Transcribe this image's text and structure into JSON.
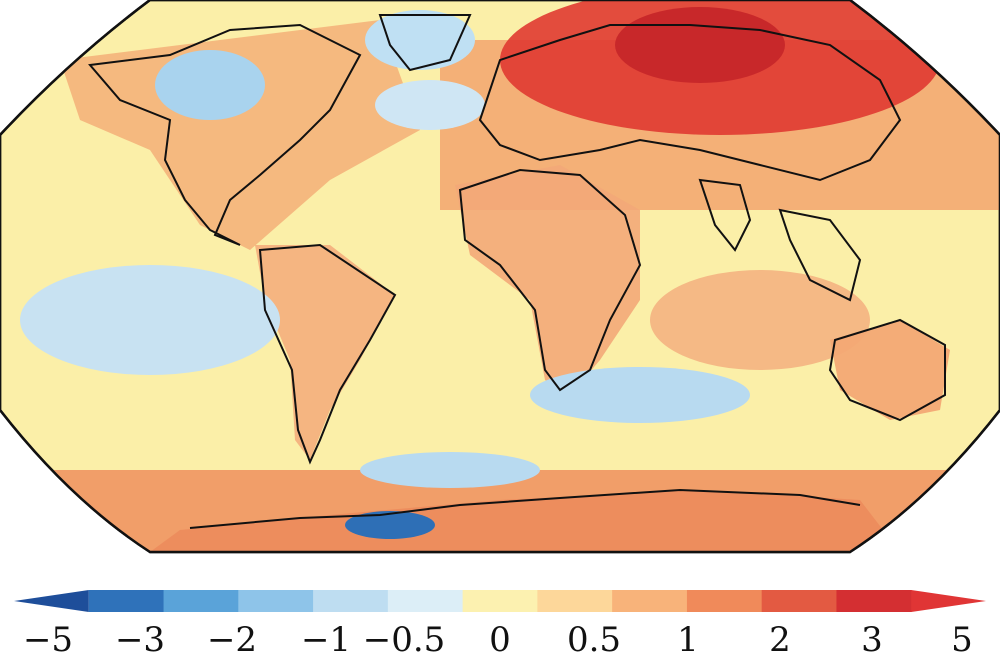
{
  "map": {
    "projection": "Robinson (world, Pacific-cropped)",
    "background_color": "#FBEFA8",
    "coastline_color": "#111111",
    "regions": [
      {
        "name": "arctic-siberia-warm-anomaly",
        "color": "#E03A31"
      },
      {
        "name": "siberia-core-anomaly",
        "color": "#C8282A"
      },
      {
        "name": "eurasia-warm-band",
        "color": "#F2A06A"
      },
      {
        "name": "north-america-warm",
        "color": "#F4B27A"
      },
      {
        "name": "hudson-bay-cool",
        "color": "#A9D3EE"
      },
      {
        "name": "greenland-cool",
        "color": "#BFE0F3"
      },
      {
        "name": "north-atlantic-cool",
        "color": "#CFE6F4"
      },
      {
        "name": "africa-warm",
        "color": "#F3A878"
      },
      {
        "name": "south-america-warm",
        "color": "#F4AE7C"
      },
      {
        "name": "east-pacific-cool",
        "color": "#C8E2F2"
      },
      {
        "name": "south-atlantic-cool",
        "color": "#B8DAF0"
      },
      {
        "name": "indian-ocean-warm",
        "color": "#F5B985"
      },
      {
        "name": "australia-warm",
        "color": "#F3A874"
      },
      {
        "name": "southern-ocean-warm-band",
        "color": "#EE8F5E"
      },
      {
        "name": "antarctic-peninsula-cold",
        "color": "#2E6FB6"
      },
      {
        "name": "antarctica-warm",
        "color": "#EC8A5C"
      }
    ]
  },
  "colorbar": {
    "colors": [
      "#1E4E9A",
      "#2F72BA",
      "#5AA3D9",
      "#8EC4E9",
      "#BEDDF1",
      "#DCEEF7",
      "#FCF1B0",
      "#FDD79A",
      "#F8B37A",
      "#F08A5A",
      "#E35A42",
      "#D42F32",
      "#E03535"
    ],
    "tick_labels": [
      "−5",
      "−3",
      "−2",
      "−1",
      "−0.5",
      "0",
      "0.5",
      "1",
      "2",
      "3",
      "5"
    ]
  }
}
